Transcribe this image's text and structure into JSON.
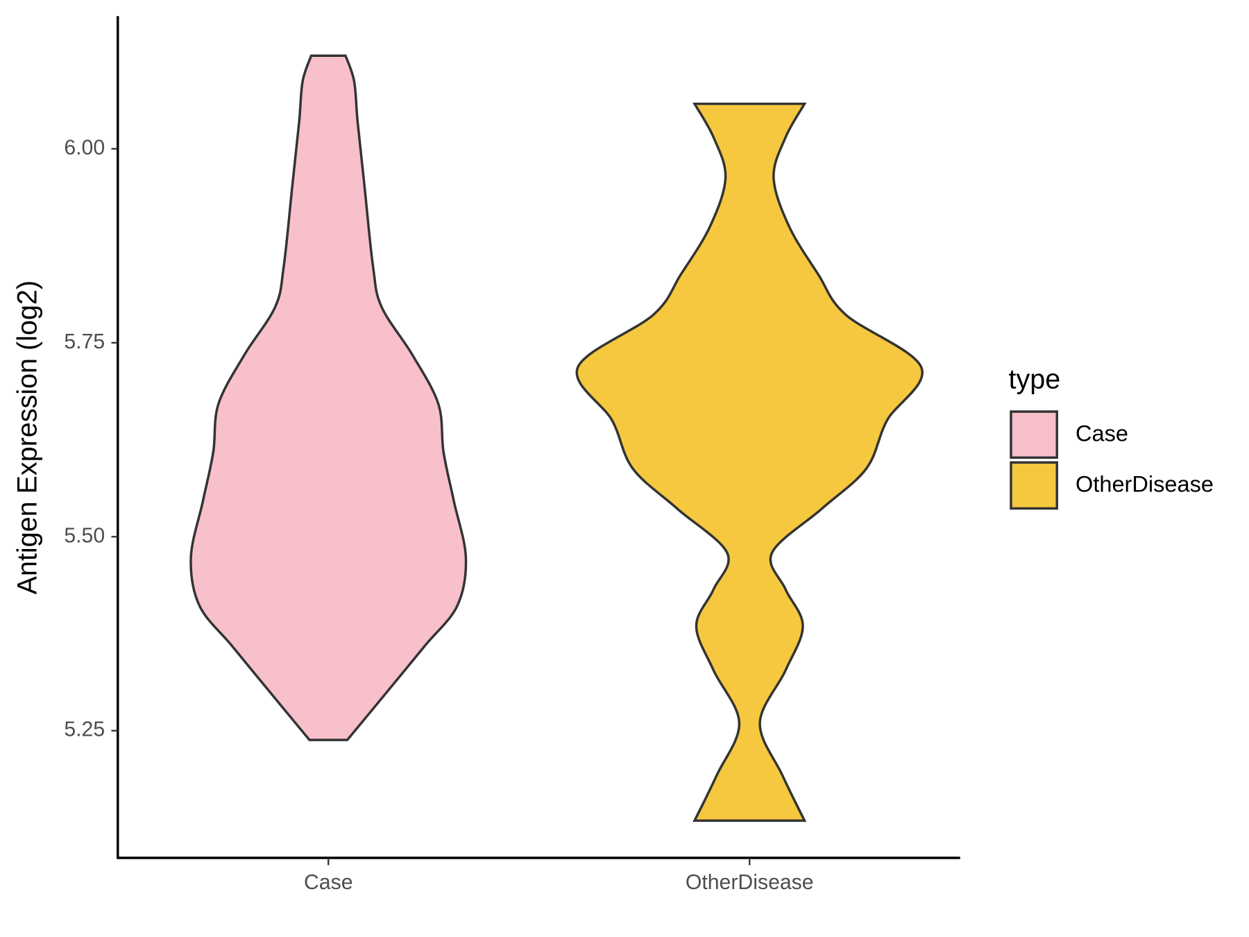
{
  "chart_data": {
    "type": "violin",
    "ylabel": "Antigen Expression (log2)",
    "categories": [
      "Case",
      "OtherDisease"
    ],
    "ylim": [
      5.086,
      6.171
    ],
    "yticks": [
      {
        "value": 5.25,
        "label": "5.25"
      },
      {
        "value": 5.5,
        "label": "5.50"
      },
      {
        "value": 5.75,
        "label": "5.75"
      },
      {
        "value": 6,
        "label": "6.00"
      }
    ],
    "legend_title": "type",
    "legend": "right",
    "series": [
      {
        "name": "Case",
        "color": "#f7c0cb",
        "y": [
          6.12,
          6.087,
          6.035,
          5.952,
          5.848,
          5.796,
          5.734,
          5.671,
          5.609,
          5.546,
          5.473,
          5.411,
          5.359,
          5.297,
          5.238
        ],
        "density": [
          0.1,
          0.15,
          0.17,
          0.21,
          0.26,
          0.31,
          0.49,
          0.64,
          0.67,
          0.73,
          0.8,
          0.75,
          0.56,
          0.33,
          0.11
        ]
      },
      {
        "name": "OtherDisease",
        "color": "#f5c83f",
        "y": [
          6.058,
          6.015,
          5.963,
          5.9,
          5.838,
          5.786,
          5.718,
          5.65,
          5.588,
          5.536,
          5.479,
          5.432,
          5.385,
          5.328,
          5.26,
          5.193,
          5.134
        ],
        "density": [
          0.32,
          0.21,
          0.14,
          0.23,
          0.4,
          0.56,
          1.0,
          0.8,
          0.68,
          0.42,
          0.13,
          0.21,
          0.31,
          0.21,
          0.06,
          0.19,
          0.32
        ]
      }
    ]
  }
}
